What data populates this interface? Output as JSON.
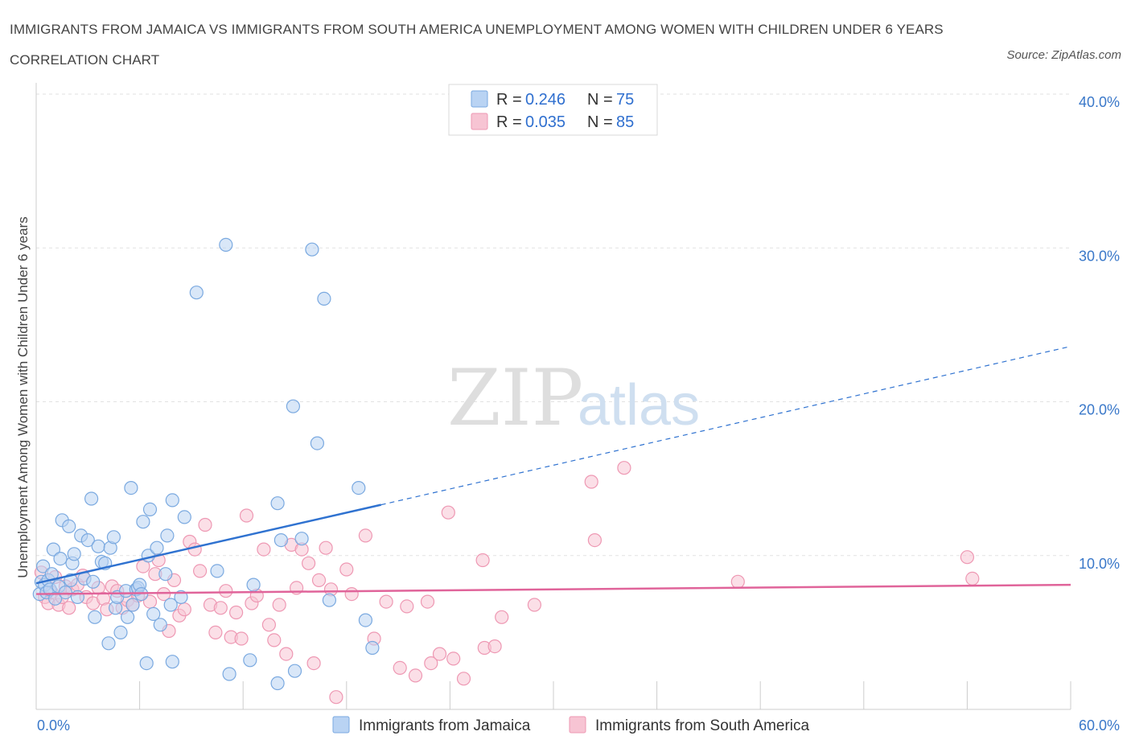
{
  "title": "IMMIGRANTS FROM JAMAICA VS IMMIGRANTS FROM SOUTH AMERICA UNEMPLOYMENT AMONG WOMEN WITH CHILDREN UNDER 6 YEARS CORRELATION CHART",
  "source": "Source: ZipAtlas.com",
  "watermark": {
    "zip": "ZIP",
    "atlas": "atlas"
  },
  "colors": {
    "jamaica_fill": "#b9d3f3",
    "jamaica_stroke": "#7aa9e0",
    "jamaica_line": "#2f72d0",
    "sa_fill": "#f7c4d3",
    "sa_stroke": "#ee98b3",
    "sa_line": "#e0649a",
    "grid": "#e2e2e2",
    "tick_text": "#3a78c9"
  },
  "legend": {
    "rows": [
      {
        "r_label": "R =",
        "r_value": "0.246",
        "n_label": "N =",
        "n_value": "75"
      },
      {
        "r_label": "R =",
        "r_value": "0.035",
        "n_label": "N =",
        "n_value": "85"
      }
    ]
  },
  "chart_data": {
    "type": "scatter",
    "title": "IMMIGRANTS FROM JAMAICA VS IMMIGRANTS FROM SOUTH AMERICA UNEMPLOYMENT AMONG WOMEN WITH CHILDREN UNDER 6 YEARS CORRELATION CHART",
    "xlabel": "",
    "ylabel": "Unemployment Among Women with Children Under 6 years",
    "xlim": [
      0,
      60
    ],
    "ylim": [
      0,
      40
    ],
    "x_tick_labels": [
      "0.0%",
      "60.0%"
    ],
    "y_tick_labels": [
      {
        "value": 10,
        "label": "10.0%"
      },
      {
        "value": 20,
        "label": "20.0%"
      },
      {
        "value": 30,
        "label": "30.0%"
      },
      {
        "value": 40,
        "label": "40.0%"
      }
    ],
    "grid": true,
    "legend_position": "top-center",
    "series": [
      {
        "name": "Immigrants from Jamaica",
        "r": 0.246,
        "n": 75,
        "trend": {
          "x_start": 0,
          "y_start": 8.2,
          "x_solid_end": 20,
          "y_solid_end": 13.3,
          "x_end": 60,
          "y_end": 23.6
        },
        "points": [
          [
            0.2,
            7.5
          ],
          [
            0.3,
            8.3
          ],
          [
            0.4,
            9.3
          ],
          [
            0.5,
            8.1
          ],
          [
            0.6,
            7.6
          ],
          [
            0.7,
            8.4
          ],
          [
            0.8,
            7.8
          ],
          [
            0.9,
            8.8
          ],
          [
            1.0,
            10.4
          ],
          [
            1.1,
            7.2
          ],
          [
            1.3,
            8.0
          ],
          [
            1.4,
            9.8
          ],
          [
            1.5,
            12.3
          ],
          [
            1.7,
            7.6
          ],
          [
            1.9,
            11.9
          ],
          [
            2.0,
            8.4
          ],
          [
            2.1,
            9.5
          ],
          [
            2.2,
            10.1
          ],
          [
            2.4,
            7.3
          ],
          [
            2.6,
            11.3
          ],
          [
            2.8,
            8.5
          ],
          [
            3.0,
            11.0
          ],
          [
            3.2,
            13.7
          ],
          [
            3.3,
            8.3
          ],
          [
            3.4,
            6.0
          ],
          [
            3.6,
            10.6
          ],
          [
            3.8,
            9.6
          ],
          [
            4.0,
            9.5
          ],
          [
            4.2,
            4.3
          ],
          [
            4.3,
            10.5
          ],
          [
            4.5,
            11.2
          ],
          [
            4.6,
            6.6
          ],
          [
            4.7,
            7.3
          ],
          [
            4.9,
            5.0
          ],
          [
            5.2,
            7.7
          ],
          [
            5.3,
            6.0
          ],
          [
            5.5,
            14.4
          ],
          [
            5.6,
            6.8
          ],
          [
            5.8,
            7.8
          ],
          [
            5.9,
            7.9
          ],
          [
            6.0,
            8.1
          ],
          [
            6.1,
            7.5
          ],
          [
            6.2,
            12.2
          ],
          [
            6.4,
            3.0
          ],
          [
            6.5,
            10.0
          ],
          [
            6.6,
            13.0
          ],
          [
            6.8,
            6.2
          ],
          [
            7.0,
            10.5
          ],
          [
            7.2,
            5.5
          ],
          [
            7.5,
            8.8
          ],
          [
            7.6,
            11.3
          ],
          [
            7.8,
            6.8
          ],
          [
            7.9,
            3.1
          ],
          [
            7.9,
            13.6
          ],
          [
            8.4,
            7.3
          ],
          [
            8.6,
            12.5
          ],
          [
            9.3,
            27.1
          ],
          [
            11.0,
            30.2
          ],
          [
            11.2,
            2.3
          ],
          [
            12.4,
            3.2
          ],
          [
            12.6,
            8.1
          ],
          [
            14.0,
            1.7
          ],
          [
            14.0,
            13.4
          ],
          [
            14.2,
            11.0
          ],
          [
            14.9,
            19.7
          ],
          [
            15.0,
            2.5
          ],
          [
            15.4,
            11.1
          ],
          [
            16.0,
            29.9
          ],
          [
            16.3,
            17.3
          ],
          [
            16.7,
            26.7
          ],
          [
            17.0,
            7.1
          ],
          [
            18.7,
            14.4
          ],
          [
            19.1,
            5.8
          ],
          [
            19.5,
            4.0
          ],
          [
            10.5,
            9.0
          ]
        ]
      },
      {
        "name": "Immigrants from South America",
        "r": 0.035,
        "n": 85,
        "trend": {
          "x_start": 0,
          "y_start": 7.5,
          "x_end": 60,
          "y_end": 8.1
        },
        "points": [
          [
            0.3,
            8.9
          ],
          [
            0.5,
            7.3
          ],
          [
            0.7,
            6.9
          ],
          [
            0.9,
            7.6
          ],
          [
            1.1,
            8.6
          ],
          [
            1.3,
            6.8
          ],
          [
            1.5,
            7.3
          ],
          [
            1.7,
            8.0
          ],
          [
            1.9,
            6.6
          ],
          [
            2.1,
            7.8
          ],
          [
            2.4,
            8.1
          ],
          [
            2.7,
            8.7
          ],
          [
            2.9,
            7.3
          ],
          [
            3.3,
            6.9
          ],
          [
            3.6,
            7.9
          ],
          [
            3.9,
            7.2
          ],
          [
            4.1,
            6.5
          ],
          [
            4.4,
            8.0
          ],
          [
            4.7,
            7.7
          ],
          [
            5.0,
            6.6
          ],
          [
            5.3,
            7.1
          ],
          [
            5.6,
            6.8
          ],
          [
            5.9,
            7.4
          ],
          [
            6.2,
            9.3
          ],
          [
            6.6,
            7.0
          ],
          [
            6.9,
            8.8
          ],
          [
            7.1,
            9.7
          ],
          [
            7.4,
            7.5
          ],
          [
            7.7,
            5.1
          ],
          [
            8.0,
            8.4
          ],
          [
            8.3,
            6.1
          ],
          [
            8.6,
            6.5
          ],
          [
            8.9,
            10.9
          ],
          [
            9.2,
            10.4
          ],
          [
            9.5,
            9.0
          ],
          [
            9.8,
            12.0
          ],
          [
            10.1,
            6.8
          ],
          [
            10.4,
            5.0
          ],
          [
            10.7,
            6.6
          ],
          [
            11.0,
            7.7
          ],
          [
            11.3,
            4.7
          ],
          [
            11.6,
            6.3
          ],
          [
            11.9,
            4.6
          ],
          [
            12.2,
            12.6
          ],
          [
            12.5,
            6.9
          ],
          [
            12.8,
            7.4
          ],
          [
            13.2,
            10.4
          ],
          [
            13.5,
            5.5
          ],
          [
            13.8,
            4.5
          ],
          [
            14.1,
            6.8
          ],
          [
            14.5,
            3.6
          ],
          [
            14.8,
            10.7
          ],
          [
            15.1,
            7.9
          ],
          [
            15.4,
            10.4
          ],
          [
            15.8,
            9.5
          ],
          [
            16.1,
            3.0
          ],
          [
            16.4,
            8.4
          ],
          [
            16.8,
            10.5
          ],
          [
            17.1,
            7.8
          ],
          [
            17.4,
            0.8
          ],
          [
            18.0,
            9.1
          ],
          [
            18.3,
            7.5
          ],
          [
            19.1,
            11.3
          ],
          [
            19.6,
            4.6
          ],
          [
            20.3,
            7.0
          ],
          [
            21.1,
            2.7
          ],
          [
            21.5,
            6.7
          ],
          [
            22.0,
            2.2
          ],
          [
            22.7,
            7.0
          ],
          [
            22.9,
            3.0
          ],
          [
            23.4,
            3.6
          ],
          [
            23.9,
            12.8
          ],
          [
            24.2,
            3.3
          ],
          [
            24.8,
            2.0
          ],
          [
            26.0,
            4.0
          ],
          [
            26.6,
            4.1
          ],
          [
            25.9,
            9.7
          ],
          [
            27.0,
            6.0
          ],
          [
            28.9,
            6.8
          ],
          [
            32.2,
            14.8
          ],
          [
            32.4,
            11.0
          ],
          [
            34.1,
            15.7
          ],
          [
            40.7,
            8.3
          ],
          [
            54.0,
            9.9
          ],
          [
            54.3,
            8.5
          ]
        ]
      }
    ]
  }
}
